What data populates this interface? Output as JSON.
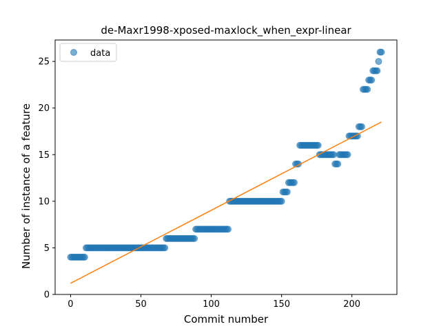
{
  "chart_data": {
    "type": "scatter",
    "title": "de-Maxr1998-xposed-maxlock_when_expr-linear",
    "xlabel": "Commit number",
    "ylabel": "Number of instance of a feature",
    "xlim": [
      -11,
      232
    ],
    "ylim": [
      0,
      27.3
    ],
    "xticks": [
      0,
      50,
      100,
      150,
      200
    ],
    "yticks": [
      0,
      5,
      10,
      15,
      20,
      25
    ],
    "grid": false,
    "legend": {
      "position": "top-left",
      "entries": [
        "data"
      ]
    },
    "colors": {
      "data": "#1f77b4",
      "fit": "#ff7f0e"
    },
    "series": [
      {
        "name": "data",
        "kind": "points",
        "runs": [
          {
            "x_start": 0,
            "x_end": 10,
            "y": 4
          },
          {
            "x_start": 11,
            "x_end": 67,
            "y": 5
          },
          {
            "x_start": 68,
            "x_end": 88,
            "y": 6
          },
          {
            "x_start": 89,
            "x_end": 112,
            "y": 7
          },
          {
            "x_start": 113,
            "x_end": 150,
            "y": 10
          },
          {
            "x_start": 151,
            "x_end": 154,
            "y": 11
          },
          {
            "x_start": 155,
            "x_end": 159,
            "y": 12
          },
          {
            "x_start": 160,
            "x_end": 162,
            "y": 14
          },
          {
            "x_start": 163,
            "x_end": 176,
            "y": 16
          },
          {
            "x_start": 177,
            "x_end": 187,
            "y": 15
          },
          {
            "x_start": 188,
            "x_end": 190,
            "y": 14
          },
          {
            "x_start": 191,
            "x_end": 197,
            "y": 15
          },
          {
            "x_start": 198,
            "x_end": 204,
            "y": 17
          },
          {
            "x_start": 205,
            "x_end": 207,
            "y": 18
          },
          {
            "x_start": 208,
            "x_end": 211,
            "y": 22
          },
          {
            "x_start": 212,
            "x_end": 214,
            "y": 23
          },
          {
            "x_start": 215,
            "x_end": 218,
            "y": 24
          },
          {
            "x_start": 219,
            "x_end": 219,
            "y": 25
          },
          {
            "x_start": 220,
            "x_end": 221,
            "y": 26
          }
        ]
      },
      {
        "kind": "line",
        "points": [
          {
            "x": 0,
            "y": 1.2
          },
          {
            "x": 221,
            "y": 18.5
          }
        ]
      }
    ]
  }
}
